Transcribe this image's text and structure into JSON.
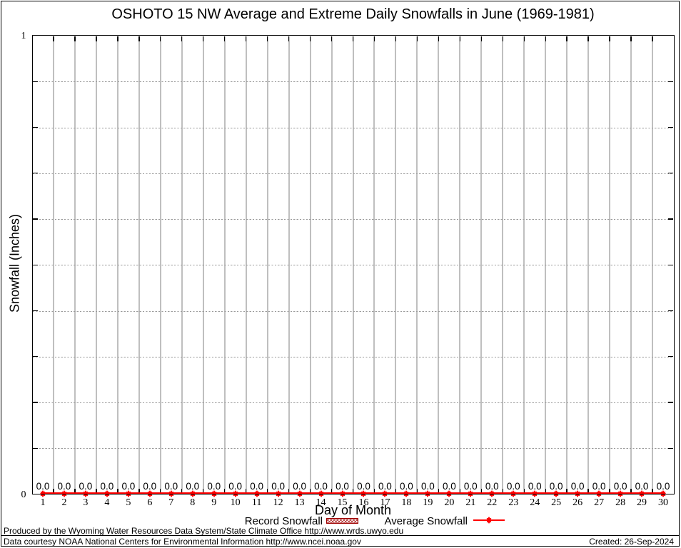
{
  "title": "OSHOTO 15 NW Average and Extreme Daily Snowfalls in June (1969-1981)",
  "chart_data": {
    "type": "line",
    "title": "OSHOTO 15 NW Average and Extreme Daily Snowfalls in June (1969-1981)",
    "xlabel": "Day of Month",
    "ylabel": "Snowfall (Inches)",
    "xlim": [
      0.5,
      30.5
    ],
    "ylim": [
      0,
      1
    ],
    "ytick_labels": [
      "0",
      "1"
    ],
    "x": [
      1,
      2,
      3,
      4,
      5,
      6,
      7,
      8,
      9,
      10,
      11,
      12,
      13,
      14,
      15,
      16,
      17,
      18,
      19,
      20,
      21,
      22,
      23,
      24,
      25,
      26,
      27,
      28,
      29,
      30
    ],
    "series": [
      {
        "name": "Record Snowfall",
        "type": "hatched-bar",
        "values": [
          0,
          0,
          0,
          0,
          0,
          0,
          0,
          0,
          0,
          0,
          0,
          0,
          0,
          0,
          0,
          0,
          0,
          0,
          0,
          0,
          0,
          0,
          0,
          0,
          0,
          0,
          0,
          0,
          0,
          0
        ]
      },
      {
        "name": "Average Snowfall",
        "type": "line-points",
        "values": [
          0,
          0,
          0,
          0,
          0,
          0,
          0,
          0,
          0,
          0,
          0,
          0,
          0,
          0,
          0,
          0,
          0,
          0,
          0,
          0,
          0,
          0,
          0,
          0,
          0,
          0,
          0,
          0,
          0,
          0
        ]
      }
    ],
    "point_labels": [
      "0.0",
      "0.0",
      "0.0",
      "0.0",
      "0.0",
      "0.0",
      "0.0",
      "0.0",
      "0.0",
      "0.0",
      "0.0",
      "0.0",
      "0.0",
      "0.0",
      "0.0",
      "0.0",
      "0.0",
      "0.0",
      "0.0",
      "0.0",
      "0.0",
      "0.0",
      "0.0",
      "0.0",
      "0.0",
      "0.0",
      "0.0",
      "0.0",
      "0.0",
      "0.0"
    ],
    "grid": true,
    "legend_position": "below"
  },
  "legend": {
    "record_label": "Record Snowfall",
    "average_label": "Average Snowfall"
  },
  "footer": {
    "line1": "Produced by the Wyoming Water Resources Data System/State Climate Office http://www.wrds.uwyo.edu",
    "line2": "Data courtesy NOAA National Centers for Environmental Information http://www.ncei.noaa.gov",
    "created": "Created: 26-Sep-2024"
  },
  "colors": {
    "average_series": "#ff0000",
    "record_series": "#a00000",
    "grid_major": "#b5b5b5",
    "grid_dotted": "#9e9e9e",
    "text": "#000000",
    "background": "#ffffff"
  }
}
